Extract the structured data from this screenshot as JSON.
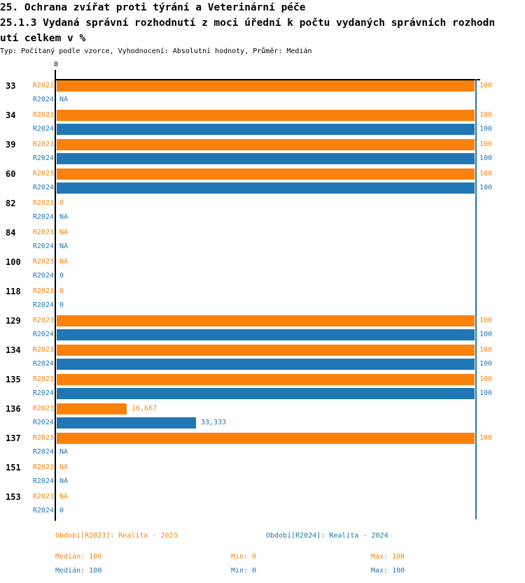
{
  "header": {
    "title_line1": "25. Ochrana zvířat proti týrání a Veterinární péče",
    "title_line2": "25.1.3 Vydaná správní rozhodnutí z moci úřední k počtu vydaných správních rozhodn",
    "title_line3": "utí celkem v %",
    "subtitle": "Typ: Počítaný podle vzorce, Vyhodnocení: Absolutní hodnoty, Průměr: Medián"
  },
  "colors": {
    "r2023": "#fb810d",
    "r2024": "#2176b4",
    "axis": "#000000"
  },
  "axis": {
    "zero_label": "0"
  },
  "chart_data": {
    "type": "bar",
    "orientation": "horizontal",
    "title": "25.1.3 Vydaná správní rozhodnutí z moci úřední k počtu vydaných správních rozhodnutí celkem v %",
    "categories": [
      "33",
      "34",
      "39",
      "60",
      "82",
      "84",
      "100",
      "118",
      "129",
      "134",
      "135",
      "136",
      "137",
      "151",
      "153"
    ],
    "series": [
      {
        "name": "R2023",
        "values": [
          100,
          100,
          100,
          100,
          0,
          null,
          null,
          0,
          100,
          100,
          100,
          16.667,
          100,
          null,
          null
        ],
        "labels": [
          "100",
          "100",
          "100",
          "100",
          "0",
          "NA",
          "NA",
          "0",
          "100",
          "100",
          "100",
          "16,667",
          "100",
          "NA",
          "NA"
        ]
      },
      {
        "name": "R2024",
        "values": [
          null,
          100,
          100,
          100,
          null,
          null,
          0,
          0,
          100,
          100,
          100,
          33.333,
          null,
          null,
          0
        ],
        "labels": [
          "NA",
          "100",
          "100",
          "100",
          "NA",
          "NA",
          "0",
          "0",
          "100",
          "100",
          "100",
          "33,333",
          "NA",
          "NA",
          "0"
        ]
      }
    ],
    "xlim": [
      0,
      100
    ],
    "max_reference_value": 100,
    "grid": false,
    "legend_position": "bottom"
  },
  "legend": {
    "r2023_label": "Období[R2023]: Realita - 2023",
    "r2024_label": "Období[R2024]: Realita - 2024",
    "r2023_stats": {
      "median": "Medián: 100",
      "min": "Min: 0",
      "max": "Max: 100"
    },
    "r2024_stats": {
      "median": "Medián: 100",
      "min": "Min: 0",
      "max": "Max: 100"
    }
  }
}
